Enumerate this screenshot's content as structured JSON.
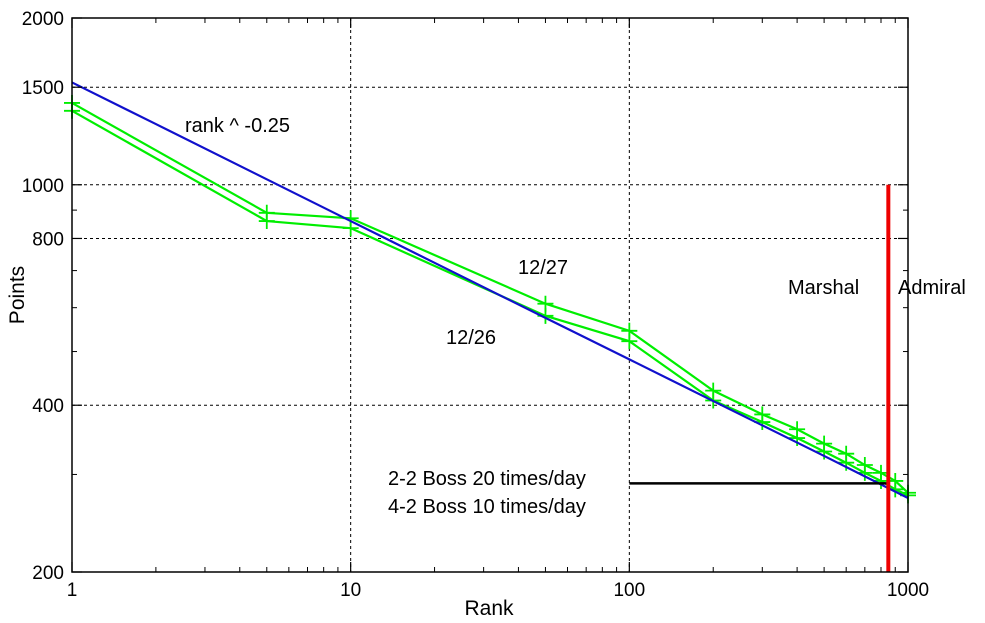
{
  "chart_data": {
    "type": "line",
    "title": "",
    "xlabel": "Rank",
    "ylabel": "Points",
    "x_scale": "log",
    "y_scale": "log",
    "xlim": [
      1,
      1000
    ],
    "ylim": [
      200,
      2000
    ],
    "x_ticks": [
      {
        "value": 1,
        "label": "1"
      },
      {
        "value": 10,
        "label": "10"
      },
      {
        "value": 100,
        "label": "100"
      },
      {
        "value": 1000,
        "label": "1000"
      }
    ],
    "y_ticks": [
      {
        "value": 200,
        "label": "200"
      },
      {
        "value": 400,
        "label": "400"
      },
      {
        "value": 800,
        "label": "800"
      },
      {
        "value": 1000,
        "label": "1000"
      },
      {
        "value": 1500,
        "label": "1500"
      },
      {
        "value": 2000,
        "label": "2000"
      }
    ],
    "grid": true,
    "series": [
      {
        "name": "12/27",
        "color": "#00ee00",
        "marker": "plus",
        "x": [
          1,
          5,
          10,
          50,
          100,
          200,
          300,
          400,
          500,
          600,
          700,
          800,
          900,
          1000
        ],
        "y": [
          1405,
          890,
          870,
          610,
          545,
          425,
          385,
          362,
          341,
          327,
          312,
          302,
          292,
          278
        ]
      },
      {
        "name": "12/26",
        "color": "#00ee00",
        "marker": "plus",
        "x": [
          1,
          5,
          10,
          50,
          100,
          200,
          300,
          400,
          500,
          600,
          700,
          800,
          900,
          1000
        ],
        "y": [
          1360,
          860,
          835,
          580,
          522,
          408,
          373,
          349,
          330,
          315,
          302,
          292,
          282,
          275
        ]
      },
      {
        "name": "rank ^ -0.25",
        "color": "#1010cc",
        "marker": "none",
        "x": [
          1,
          2,
          5,
          10,
          20,
          50,
          100,
          200,
          500,
          1000
        ],
        "y": [
          1530,
          1287,
          1023,
          860,
          723,
          575,
          484,
          407,
          324,
          272
        ]
      }
    ],
    "annotations": {
      "curve_label": "rank ^ -0.25",
      "label_1227": "12/27",
      "label_1226": "12/26",
      "marshal": "Marshal",
      "admiral": "Admiral",
      "boss1": "2-2 Boss  20 times/day",
      "boss2": "4-2 Boss 10 times/day"
    },
    "rank_cutoff": {
      "x": 850,
      "y_top": 1000,
      "color": "#ee0000"
    },
    "boss_line": {
      "x_start": 100,
      "x_end": 850,
      "y": 289,
      "color": "#000000"
    }
  }
}
